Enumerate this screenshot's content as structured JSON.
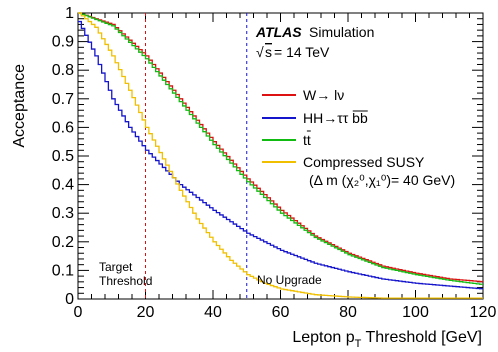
{
  "chart_data": {
    "type": "line",
    "xlabel": "Lepton p",
    "xlabel_sub": "T",
    "xlabel_suffix": " Threshold [GeV]",
    "ylabel": "Acceptance",
    "xlim": [
      0,
      120
    ],
    "ylim": [
      0,
      1
    ],
    "x_ticks": [
      0,
      20,
      40,
      60,
      80,
      100,
      120
    ],
    "y_ticks": [
      0,
      0.1,
      0.2,
      0.3,
      0.4,
      0.5,
      0.6,
      0.7,
      0.8,
      0.9,
      1
    ],
    "grid": false,
    "legend_position": "right",
    "experiment": "ATLAS",
    "experiment_note": "Simulation",
    "energy_label": "= 14 TeV",
    "series": [
      {
        "name": "W→ lν",
        "color": "#dd1111",
        "x": [
          0,
          10,
          20,
          30,
          40,
          50,
          60,
          70,
          80,
          90,
          100,
          110,
          120
        ],
        "y": [
          1.0,
          0.96,
          0.85,
          0.7,
          0.55,
          0.42,
          0.31,
          0.22,
          0.16,
          0.115,
          0.09,
          0.07,
          0.06
        ]
      },
      {
        "name": "HH→ττ bb",
        "color": "#1515cc",
        "x": [
          0,
          5,
          10,
          15,
          20,
          25,
          30,
          40,
          50,
          60,
          70,
          80,
          90,
          100,
          110,
          120
        ],
        "y": [
          0.97,
          0.85,
          0.7,
          0.6,
          0.52,
          0.46,
          0.4,
          0.31,
          0.23,
          0.17,
          0.125,
          0.095,
          0.07,
          0.055,
          0.045,
          0.035
        ]
      },
      {
        "name": "tt",
        "color": "#11bb11",
        "x": [
          0,
          10,
          20,
          30,
          40,
          50,
          60,
          70,
          80,
          90,
          100,
          110,
          120
        ],
        "y": [
          1.0,
          0.955,
          0.84,
          0.69,
          0.54,
          0.41,
          0.3,
          0.215,
          0.155,
          0.11,
          0.085,
          0.065,
          0.05
        ]
      },
      {
        "name": "Compressed SUSY",
        "name_line2": "(Δ m (χ₂⁰,χ₁⁰)= 40 GeV)",
        "color": "#f0c000",
        "x": [
          0,
          5,
          10,
          15,
          20,
          25,
          30,
          35,
          40,
          45,
          50,
          55,
          60,
          70,
          80,
          90
        ],
        "y": [
          1.0,
          0.95,
          0.85,
          0.73,
          0.6,
          0.49,
          0.38,
          0.28,
          0.2,
          0.135,
          0.085,
          0.055,
          0.035,
          0.015,
          0.007,
          0.003
        ]
      }
    ],
    "annotations": [
      {
        "x": 20,
        "label_line1": "Target",
        "label_line2": "Threshold",
        "color": "#dd1111"
      },
      {
        "x": 50,
        "label": "No Upgrade",
        "color": "#1515cc"
      }
    ]
  }
}
